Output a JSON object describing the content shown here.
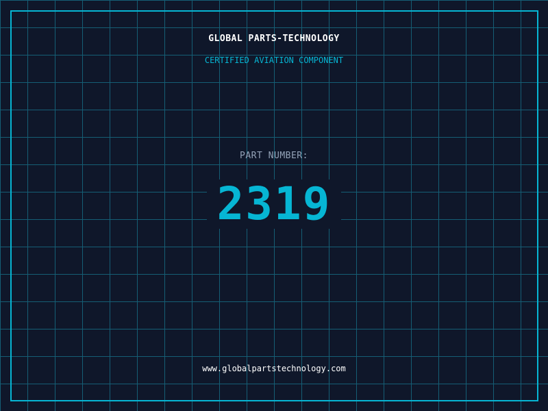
{
  "header": {
    "brand": "GLOBAL PARTS-TECHNOLOGY",
    "subtitle": "CERTIFIED AVIATION COMPONENT"
  },
  "part": {
    "label": "PART NUMBER:",
    "number": "2319"
  },
  "footer": {
    "url": "www.globalpartstechnology.com"
  },
  "colors": {
    "background": "#0f172a",
    "accent": "#06b6d4",
    "grid": "#155e75"
  }
}
